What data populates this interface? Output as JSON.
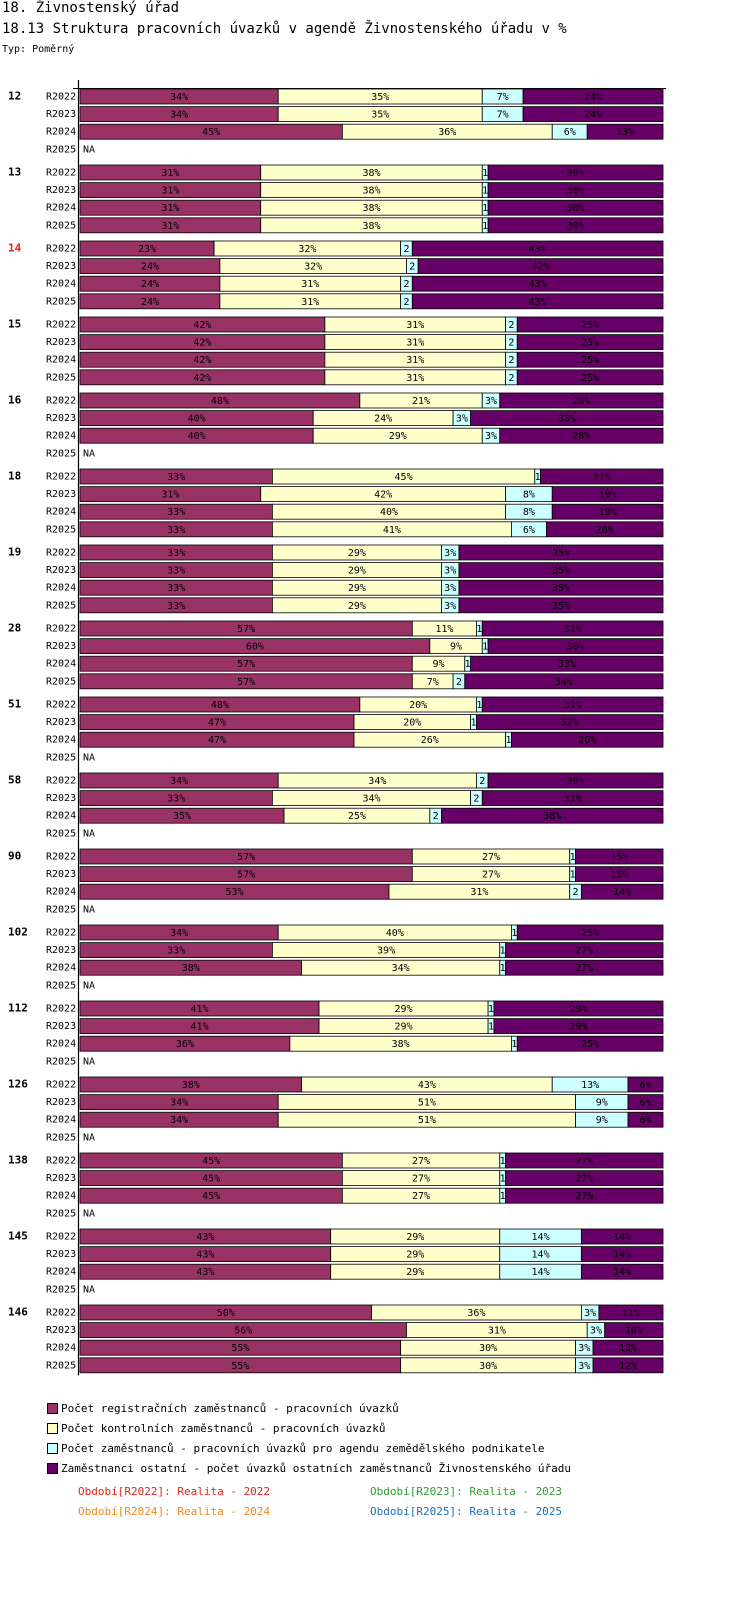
{
  "header": {
    "section": "18. Živnostenský úřad",
    "title": "18.13 Struktura pracovních úvazků v agendě Živnostenského úřadu v %",
    "type_label": "Typ: Poměrný"
  },
  "legend": {
    "items": [
      {
        "label": "Počet registračních zaměstnanců - pracovních úvazků",
        "color": "#993366"
      },
      {
        "label": "Počet kontrolních zaměstnanců - pracovních úvazků",
        "color": "#ffffcc"
      },
      {
        "label": "Počet zaměstnanců - pracovních úvazků pro agendu zemědělského podnikatele",
        "color": "#ccffff"
      },
      {
        "label": "Zaměstnanci ostatní - počet úvazků ostatních zaměstnanců Živnostenského úřadu",
        "color": "#660066"
      }
    ],
    "periods": [
      {
        "label": "Období[R2022]: Realita - 2022",
        "color": "#e2231a"
      },
      {
        "label": "Období[R2023]: Realita - 2023",
        "color": "#2e9e2e"
      },
      {
        "label": "Období[R2024]: Realita - 2024",
        "color": "#f28a14"
      },
      {
        "label": "Období[R2025]: Realita - 2025",
        "color": "#1f6fb2"
      }
    ]
  },
  "chart_data": {
    "type": "bar",
    "stacked": true,
    "orientation": "horizontal",
    "unit": "%",
    "xlim": [
      0,
      100
    ],
    "na_label": "NA",
    "highlight_group": "14",
    "highlight_color": "#e2231a",
    "series": [
      {
        "name": "Počet registračních zaměstnanců - pracovních úvazků",
        "color": "#993366"
      },
      {
        "name": "Počet kontrolních zaměstnanců - pracovních úvazků",
        "color": "#ffffcc"
      },
      {
        "name": "Počet zaměstnanců - pracovních úvazků pro agendu zemědělského podnikatele",
        "color": "#ccffff"
      },
      {
        "name": "Zaměstnanci ostatní - počet úvazků ostatních zaměstnanců Živnostenského úřadu",
        "color": "#660066"
      }
    ],
    "groups": [
      {
        "label": "12",
        "rows": [
          {
            "period": "R2022",
            "values": [
              34,
              35,
              7,
              24
            ]
          },
          {
            "period": "R2023",
            "values": [
              34,
              35,
              7,
              24
            ]
          },
          {
            "period": "R2024",
            "values": [
              45,
              36,
              6,
              13
            ]
          },
          {
            "period": "R2025",
            "values": null
          }
        ]
      },
      {
        "label": "13",
        "rows": [
          {
            "period": "R2022",
            "values": [
              31,
              38,
              1,
              30
            ]
          },
          {
            "period": "R2023",
            "values": [
              31,
              38,
              1,
              30
            ]
          },
          {
            "period": "R2024",
            "values": [
              31,
              38,
              1,
              30
            ]
          },
          {
            "period": "R2025",
            "values": [
              31,
              38,
              1,
              30
            ]
          }
        ]
      },
      {
        "label": "14",
        "rows": [
          {
            "period": "R2022",
            "values": [
              23,
              32,
              2,
              43
            ]
          },
          {
            "period": "R2023",
            "values": [
              24,
              32,
              2,
              42
            ]
          },
          {
            "period": "R2024",
            "values": [
              24,
              31,
              2,
              43
            ]
          },
          {
            "period": "R2025",
            "values": [
              24,
              31,
              2,
              43
            ]
          }
        ]
      },
      {
        "label": "15",
        "rows": [
          {
            "period": "R2022",
            "values": [
              42,
              31,
              2,
              25
            ]
          },
          {
            "period": "R2023",
            "values": [
              42,
              31,
              2,
              25
            ]
          },
          {
            "period": "R2024",
            "values": [
              42,
              31,
              2,
              25
            ]
          },
          {
            "period": "R2025",
            "values": [
              42,
              31,
              2,
              25
            ]
          }
        ]
      },
      {
        "label": "16",
        "rows": [
          {
            "period": "R2022",
            "values": [
              48,
              21,
              3,
              28
            ]
          },
          {
            "period": "R2023",
            "values": [
              40,
              24,
              3,
              33
            ]
          },
          {
            "period": "R2024",
            "values": [
              40,
              29,
              3,
              28
            ]
          },
          {
            "period": "R2025",
            "values": null
          }
        ]
      },
      {
        "label": "18",
        "rows": [
          {
            "period": "R2022",
            "values": [
              33,
              45,
              1,
              21
            ]
          },
          {
            "period": "R2023",
            "values": [
              31,
              42,
              8,
              19
            ]
          },
          {
            "period": "R2024",
            "values": [
              33,
              40,
              8,
              19
            ]
          },
          {
            "period": "R2025",
            "values": [
              33,
              41,
              6,
              20
            ]
          }
        ]
      },
      {
        "label": "19",
        "rows": [
          {
            "period": "R2022",
            "values": [
              33,
              29,
              3,
              35
            ]
          },
          {
            "period": "R2023",
            "values": [
              33,
              29,
              3,
              35
            ]
          },
          {
            "period": "R2024",
            "values": [
              33,
              29,
              3,
              35
            ]
          },
          {
            "period": "R2025",
            "values": [
              33,
              29,
              3,
              35
            ]
          }
        ]
      },
      {
        "label": "28",
        "rows": [
          {
            "period": "R2022",
            "values": [
              57,
              11,
              1,
              31
            ]
          },
          {
            "period": "R2023",
            "values": [
              60,
              9,
              1,
              30
            ]
          },
          {
            "period": "R2024",
            "values": [
              57,
              9,
              1,
              33
            ]
          },
          {
            "period": "R2025",
            "values": [
              57,
              7,
              2,
              34
            ]
          }
        ]
      },
      {
        "label": "51",
        "rows": [
          {
            "period": "R2022",
            "values": [
              48,
              20,
              1,
              31
            ]
          },
          {
            "period": "R2023",
            "values": [
              47,
              20,
              1,
              32
            ]
          },
          {
            "period": "R2024",
            "values": [
              47,
              26,
              1,
              26
            ]
          },
          {
            "period": "R2025",
            "values": null
          }
        ]
      },
      {
        "label": "58",
        "rows": [
          {
            "period": "R2022",
            "values": [
              34,
              34,
              2,
              30
            ]
          },
          {
            "period": "R2023",
            "values": [
              33,
              34,
              2,
              31
            ]
          },
          {
            "period": "R2024",
            "values": [
              35,
              25,
              2,
              38
            ]
          },
          {
            "period": "R2025",
            "values": null
          }
        ]
      },
      {
        "label": "90",
        "rows": [
          {
            "period": "R2022",
            "values": [
              57,
              27,
              1,
              15
            ]
          },
          {
            "period": "R2023",
            "values": [
              57,
              27,
              1,
              15
            ]
          },
          {
            "period": "R2024",
            "values": [
              53,
              31,
              2,
              14
            ]
          },
          {
            "period": "R2025",
            "values": null
          }
        ]
      },
      {
        "label": "102",
        "rows": [
          {
            "period": "R2022",
            "values": [
              34,
              40,
              1,
              25
            ]
          },
          {
            "period": "R2023",
            "values": [
              33,
              39,
              1,
              27
            ]
          },
          {
            "period": "R2024",
            "values": [
              38,
              34,
              1,
              27
            ]
          },
          {
            "period": "R2025",
            "values": null
          }
        ]
      },
      {
        "label": "112",
        "rows": [
          {
            "period": "R2022",
            "values": [
              41,
              29,
              1,
              29
            ]
          },
          {
            "period": "R2023",
            "values": [
              41,
              29,
              1,
              29
            ]
          },
          {
            "period": "R2024",
            "values": [
              36,
              38,
              1,
              25
            ]
          },
          {
            "period": "R2025",
            "values": null
          }
        ]
      },
      {
        "label": "126",
        "rows": [
          {
            "period": "R2022",
            "values": [
              38,
              43,
              13,
              6
            ]
          },
          {
            "period": "R2023",
            "values": [
              34,
              51,
              9,
              6
            ]
          },
          {
            "period": "R2024",
            "values": [
              34,
              51,
              9,
              6
            ]
          },
          {
            "period": "R2025",
            "values": null
          }
        ]
      },
      {
        "label": "138",
        "rows": [
          {
            "period": "R2022",
            "values": [
              45,
              27,
              1,
              27
            ]
          },
          {
            "period": "R2023",
            "values": [
              45,
              27,
              1,
              27
            ]
          },
          {
            "period": "R2024",
            "values": [
              45,
              27,
              1,
              27
            ]
          },
          {
            "period": "R2025",
            "values": null
          }
        ]
      },
      {
        "label": "145",
        "rows": [
          {
            "period": "R2022",
            "values": [
              43,
              29,
              14,
              14
            ]
          },
          {
            "period": "R2023",
            "values": [
              43,
              29,
              14,
              14
            ]
          },
          {
            "period": "R2024",
            "values": [
              43,
              29,
              14,
              14
            ]
          },
          {
            "period": "R2025",
            "values": null
          }
        ]
      },
      {
        "label": "146",
        "rows": [
          {
            "period": "R2022",
            "values": [
              50,
              36,
              3,
              11
            ]
          },
          {
            "period": "R2023",
            "values": [
              56,
              31,
              3,
              10
            ]
          },
          {
            "period": "R2024",
            "values": [
              55,
              30,
              3,
              12
            ]
          },
          {
            "period": "R2025",
            "values": [
              55,
              30,
              3,
              12
            ]
          }
        ]
      }
    ]
  }
}
